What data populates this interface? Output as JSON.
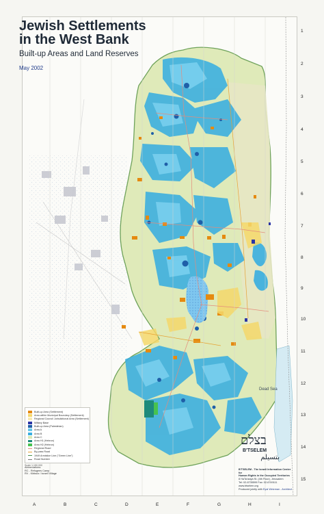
{
  "title": {
    "line1": "Jewish Settlements",
    "line2": "in the West Bank",
    "subtitle": "Built-up Areas and Land Reserves",
    "date": "May 2002"
  },
  "places": {
    "dead_sea": "Dead Sea"
  },
  "grid": {
    "rows": [
      "1",
      "2",
      "3",
      "4",
      "5",
      "6",
      "7",
      "8",
      "9",
      "10",
      "11",
      "12",
      "13",
      "14",
      "15"
    ],
    "cols": [
      "A",
      "B",
      "C",
      "D",
      "E",
      "F",
      "G",
      "H",
      "I"
    ]
  },
  "legend": [
    {
      "label": "Built-up Area (Settlement)",
      "color": "#e58a10"
    },
    {
      "label": "Area within Municipal Boundary (Settlement)",
      "color": "#f5d86b"
    },
    {
      "label": "Regional Council Jurisdictional Area (Settlement)",
      "color": "#f7e9b2"
    },
    {
      "label": "Military Base",
      "color": "#2b35a5"
    },
    {
      "label": "Built-up Area (Palestinian)",
      "color": "#1f5fa8"
    },
    {
      "label": "Area A",
      "color": "#66c9ea"
    },
    {
      "label": "Area B",
      "color": "#39aee0"
    },
    {
      "label": "Area C",
      "color": "#d7e9b7"
    },
    {
      "label": "Area H1 (Hebron)",
      "color": "#1d8a7b"
    },
    {
      "label": "Area H2 (Hebron)",
      "color": "#47c24f"
    },
    {
      "label": "Regional Road",
      "color": "#e48b7b"
    },
    {
      "label": "By-pass Road",
      "color": "#e6a234"
    },
    {
      "label": "1949 Armistice Line (\"Green Line\")",
      "color": "#45904d"
    },
    {
      "label": "Road Number",
      "color": "#777777"
    }
  ],
  "abbreviations": {
    "title": "Abbreviations:",
    "items": [
      "RC - Refugees Camp",
      "RV - Kibbutz / Israeli Village"
    ]
  },
  "logo": {
    "hebrew": "בצלם",
    "english": "B'TSELEM",
    "arabic": "بتسيلم"
  },
  "org": {
    "lines": [
      "B'TSELEM - The Israeli Information Center for",
      "Human Rights in the Occupied Territories",
      "8 HaTa'asiya St. (4th Floor), Jerusalem",
      "Tel: 02-6735599  Fax: 02-6749111",
      "www.btselem.org"
    ],
    "credit_prefix": "Produced jointly with",
    "credit_name": "Eyal Weizman - Architect"
  },
  "scale_note": "Scale 1:150,000"
}
